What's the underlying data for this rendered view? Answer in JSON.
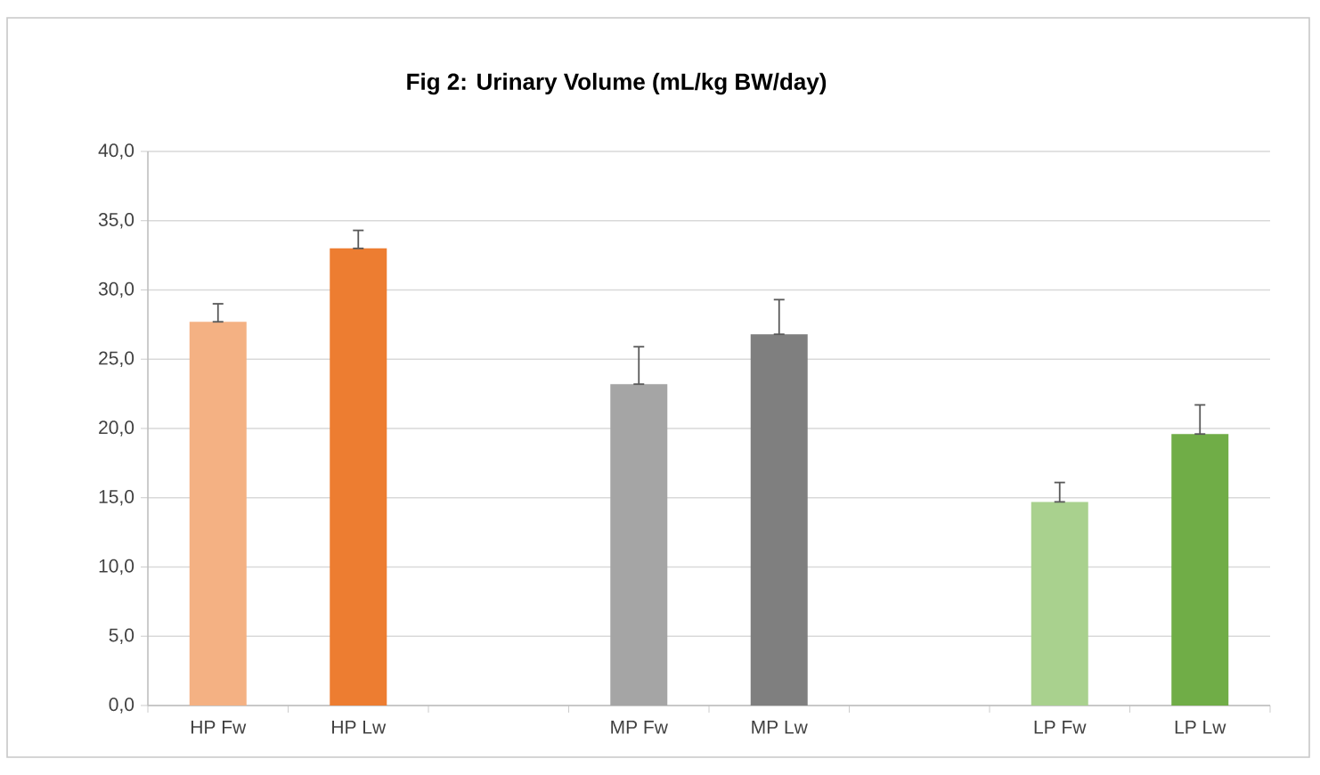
{
  "chart_data": {
    "type": "bar",
    "title": "Fig 2: Urinary Volume (mL/kg BW/day)",
    "categories": [
      "HP Fw",
      "HP Lw",
      null,
      "MP Fw",
      "MP Lw",
      null,
      "LP Fw",
      "LP Lw"
    ],
    "values": [
      27.7,
      33.0,
      null,
      23.2,
      26.8,
      null,
      14.7,
      19.6
    ],
    "colors": [
      "#f4b183",
      "#ed7d31",
      "#ffffff",
      "#a5a5a5",
      "#7f7f7f",
      "#ffffff",
      "#a9d18e",
      "#70ad47"
    ],
    "errors": [
      [
        27.7,
        29.0
      ],
      [
        33.0,
        34.3
      ],
      null,
      [
        23.2,
        25.9
      ],
      [
        26.8,
        29.3
      ],
      null,
      [
        14.7,
        16.1
      ],
      [
        19.6,
        21.7
      ]
    ],
    "ylim": [
      0,
      40
    ],
    "yticks": [
      {
        "value": 0,
        "label": "0,0"
      },
      {
        "value": 5,
        "label": "5,0"
      },
      {
        "value": 10,
        "label": "10,0"
      },
      {
        "value": 15,
        "label": "15,0"
      },
      {
        "value": 20,
        "label": "20,0"
      },
      {
        "value": 25,
        "label": "25,0"
      },
      {
        "value": 30,
        "label": "30,0"
      },
      {
        "value": 35,
        "label": "35,0"
      },
      {
        "value": 40,
        "label": "40,0"
      }
    ],
    "grid": "y"
  }
}
